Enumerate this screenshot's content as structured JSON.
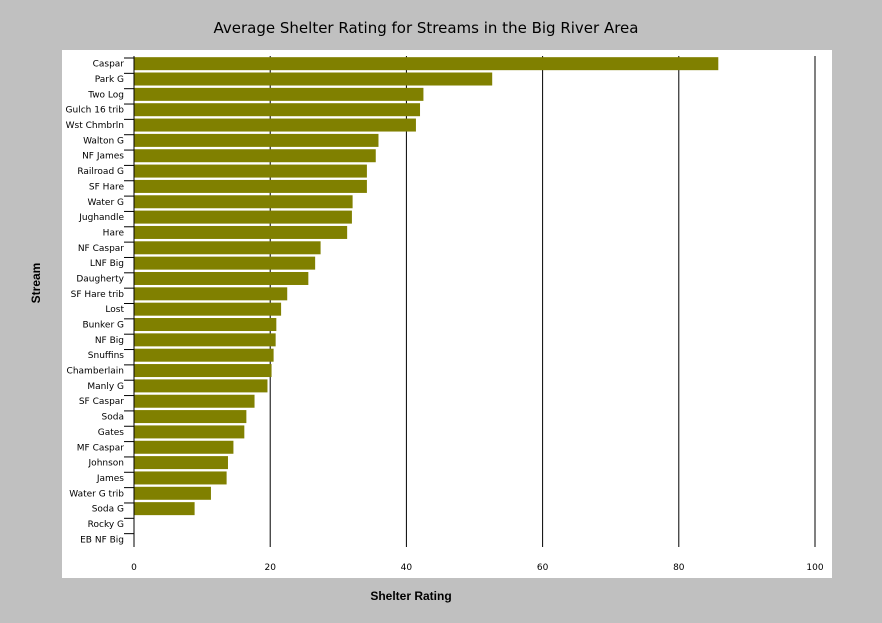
{
  "chart_data": {
    "type": "bar",
    "orientation": "horizontal",
    "title": "Average Shelter Rating for Streams in the Big River Area",
    "xlabel": "Shelter Rating",
    "ylabel": "Stream",
    "xlim": [
      0,
      100
    ],
    "xticks": [
      0,
      20,
      40,
      60,
      80,
      100
    ],
    "grid": "vertical",
    "legend": "none",
    "bar_color": "#808000",
    "categories": [
      "Caspar",
      "Park G",
      "Two Log",
      "Gulch 16 trib",
      "Wst Chmbrln",
      "Walton G",
      "NF James",
      "Railroad G",
      "SF Hare",
      "Water G",
      "Jughandle",
      "Hare",
      "NF Caspar",
      "LNF Big",
      "Daugherty",
      "SF Hare trib",
      "Lost",
      "Bunker G",
      "NF Big",
      "Snuffins",
      "Chamberlain",
      "Manly G",
      "SF Caspar",
      "Soda",
      "Gates",
      "MF Caspar",
      "Johnson",
      "James",
      "Water G trib",
      "Soda G",
      "Rocky G",
      "EB NF Big"
    ],
    "values": [
      85.8,
      52.6,
      42.5,
      42.0,
      41.4,
      35.9,
      35.5,
      34.2,
      34.2,
      32.1,
      32.0,
      31.3,
      27.4,
      26.6,
      25.6,
      22.5,
      21.6,
      20.9,
      20.8,
      20.5,
      20.2,
      19.6,
      17.7,
      16.5,
      16.2,
      14.6,
      13.8,
      13.6,
      11.3,
      8.9,
      0,
      0
    ]
  }
}
